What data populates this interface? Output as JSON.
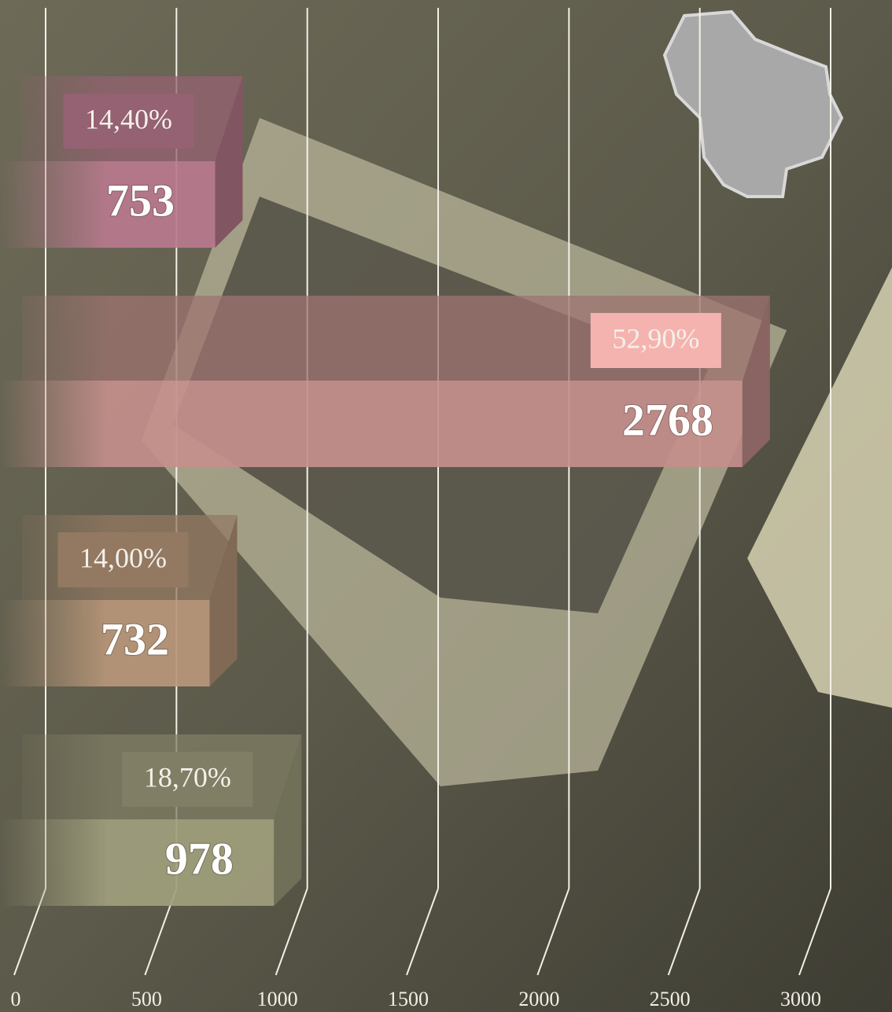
{
  "chart_data": {
    "type": "bar3d",
    "categories": [
      null,
      null,
      null,
      null
    ],
    "values": [
      753,
      2768,
      732,
      978
    ],
    "colors": [
      "#b97a8e",
      "#c48f8c",
      "#b8977a",
      "#a09e7d"
    ],
    "percent_values": [
      14.4,
      52.9,
      14.0,
      18.7
    ],
    "percent_labels": [
      "14,40%",
      "52,90%",
      "14,00%",
      "18,70%"
    ],
    "xlim": [
      0,
      3000
    ],
    "xticks": [
      0,
      500,
      1000,
      1500,
      2000,
      2500,
      3000
    ],
    "grid": true
  }
}
